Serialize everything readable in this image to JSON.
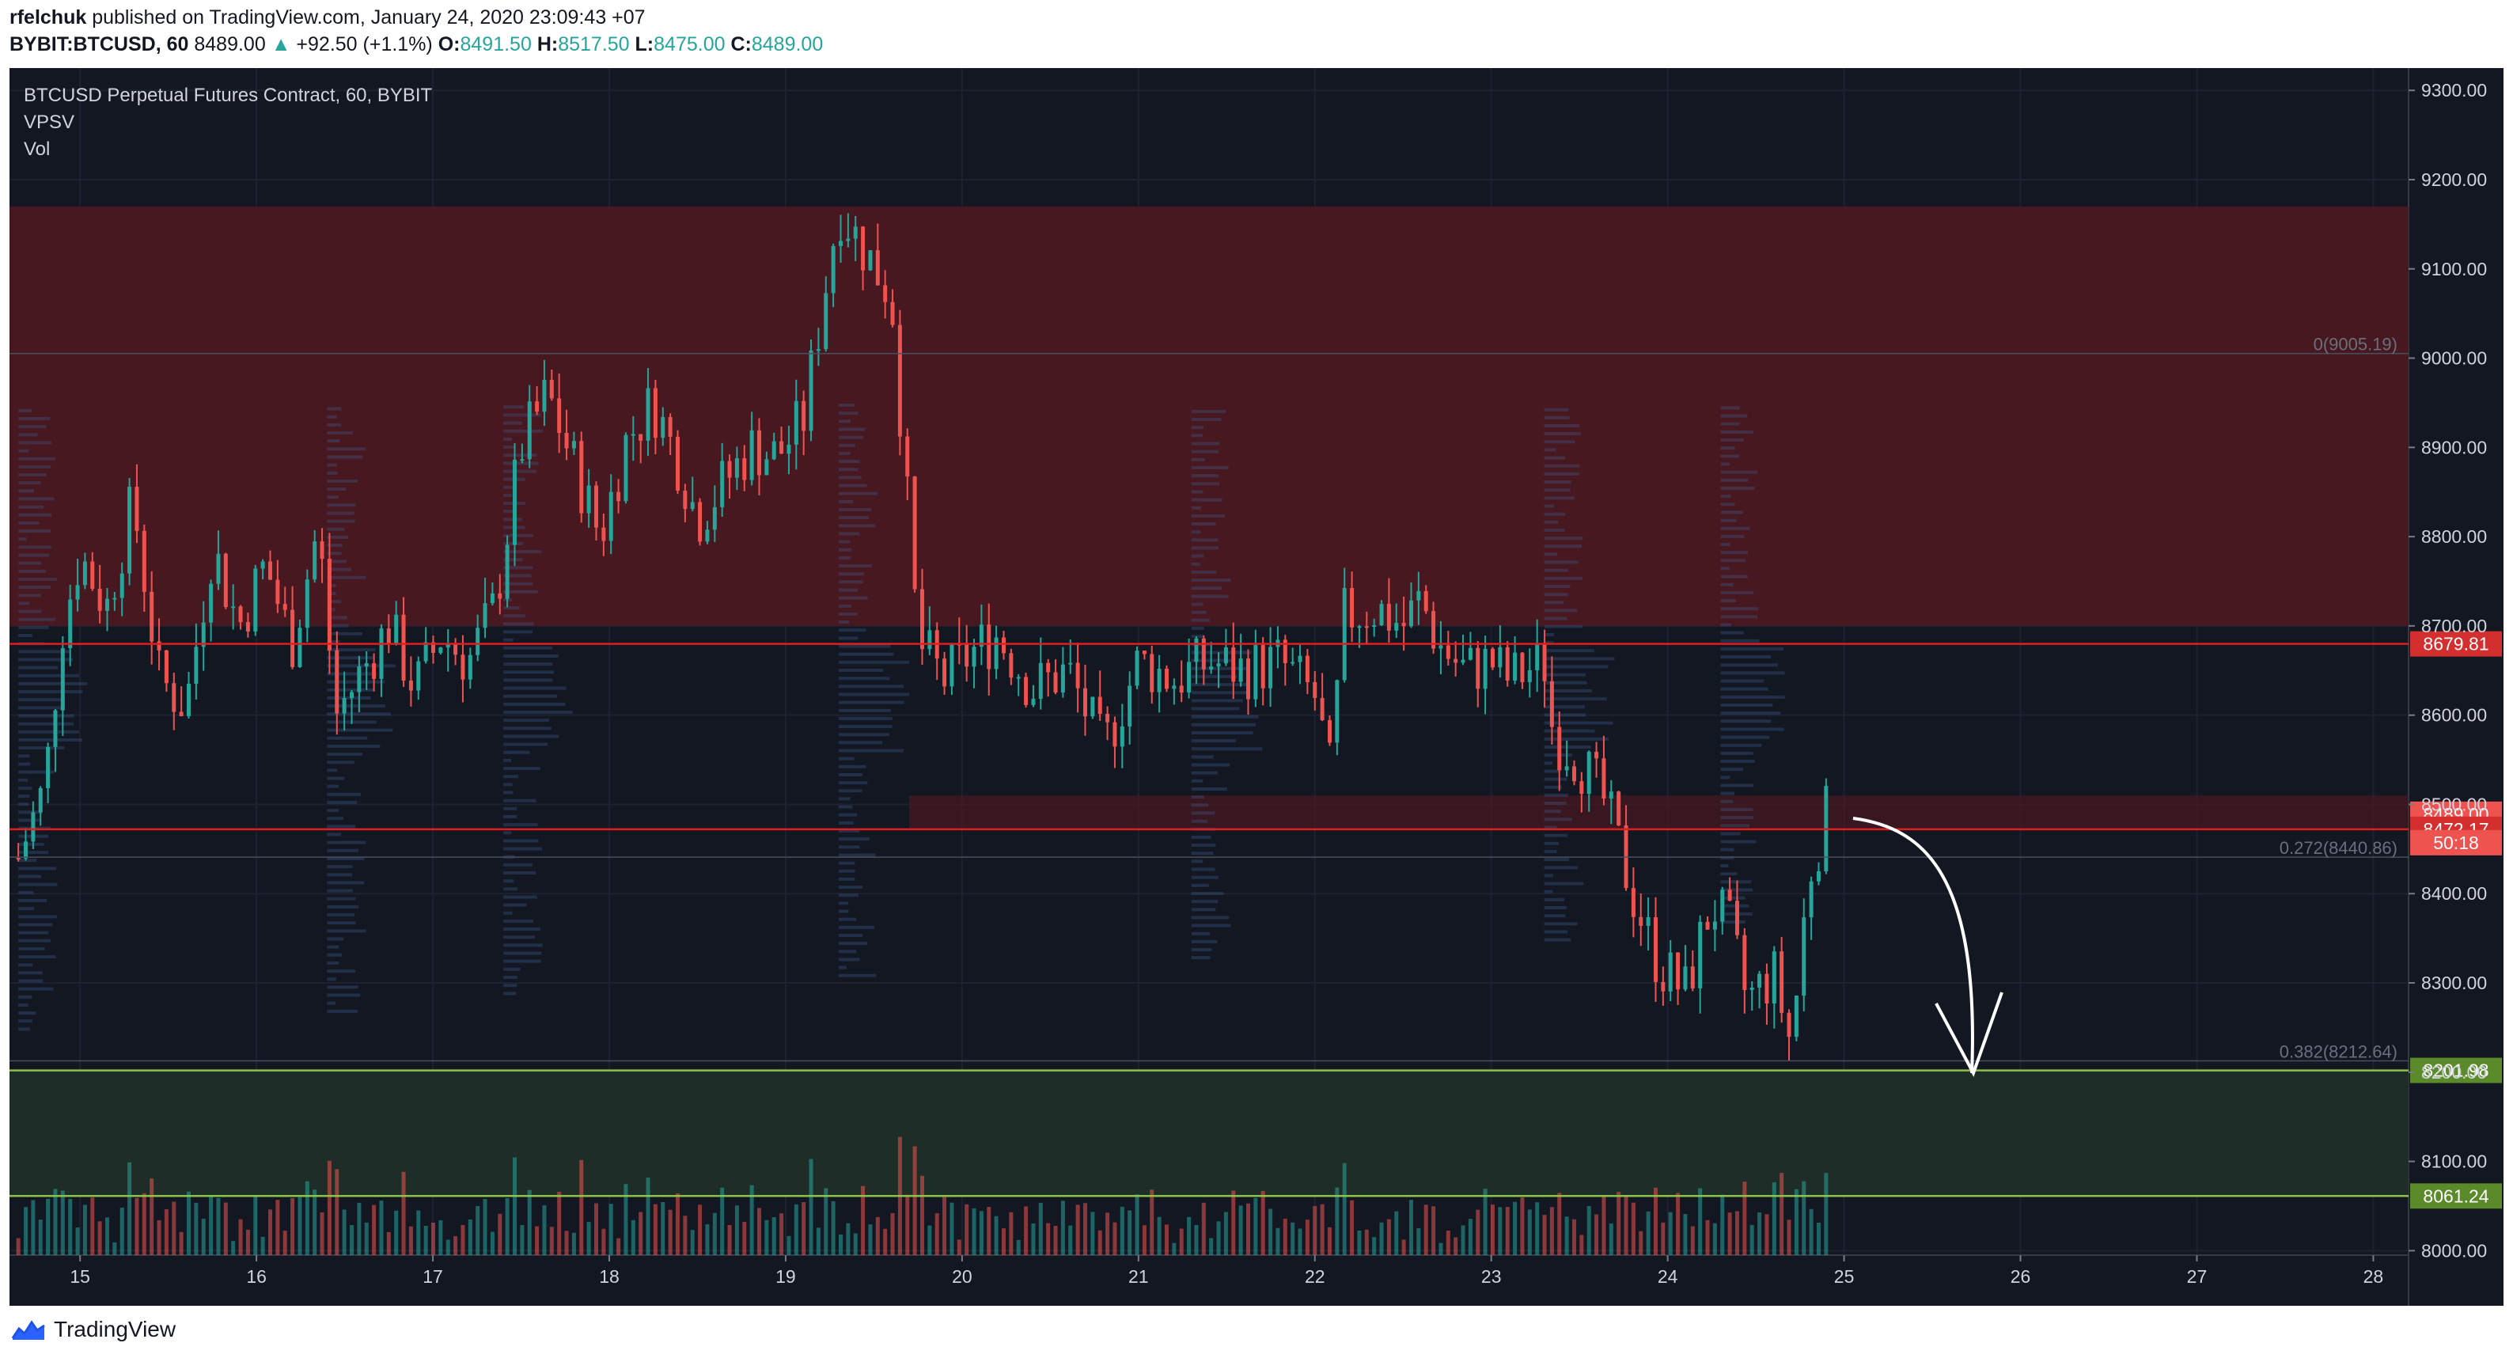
{
  "header": {
    "author": "rfelchuk",
    "published_text": "published on TradingView.com, January 24, 2020 23:09:43 +07"
  },
  "quote": {
    "symbol": "BYBIT:BTCUSD, 60",
    "last": "8489.00",
    "change": "+92.50 (+1.1%)",
    "o_label": "O:",
    "o": "8491.50",
    "h_label": "H:",
    "h": "8517.50",
    "l_label": "L:",
    "l": "8475.00",
    "c_label": "C:",
    "c": "8489.00",
    "up_color": "#26a69a"
  },
  "legend": {
    "title": "BTCUSD Perpetual Futures Contract, 60, BYBIT",
    "indicator1": "VPSV",
    "indicator2": "Vol"
  },
  "brand": {
    "name": "TradingView",
    "icon": "tradingview-logo-icon"
  },
  "colors": {
    "background": "#131722",
    "up": "#26a69a",
    "down": "#ef5350",
    "resistance_zone": "#4a1820",
    "support_zone": "#1f2e28",
    "red_line": "#e01e1e",
    "green_line": "#8bc34a"
  },
  "chart_data": {
    "type": "candlestick",
    "title": "BTCUSD Perpetual Futures Contract, 60, BYBIT",
    "interval": "60",
    "exchange": "BYBIT",
    "x_ticks": [
      "15",
      "16",
      "17",
      "18",
      "19",
      "20",
      "21",
      "22",
      "23",
      "24",
      "25",
      "26",
      "27",
      "28"
    ],
    "x_range_days": [
      14.6,
      28.2
    ],
    "y_ticks": [
      "9300.00",
      "9200.00",
      "9100.00",
      "9000.00",
      "8900.00",
      "8800.00",
      "8700.00",
      "8600.00",
      "8500.00",
      "8400.00",
      "8300.00",
      "8200.00",
      "8100.00",
      "8000.00"
    ],
    "ylim": [
      7995,
      9325
    ],
    "grid": true,
    "close_series": [
      {
        "day": 14.65,
        "close": 8440
      },
      {
        "day": 14.8,
        "close": 8520
      },
      {
        "day": 14.9,
        "close": 8700
      },
      {
        "day": 15.0,
        "close": 8780
      },
      {
        "day": 15.15,
        "close": 8720
      },
      {
        "day": 15.3,
        "close": 8840
      },
      {
        "day": 15.45,
        "close": 8640
      },
      {
        "day": 15.6,
        "close": 8610
      },
      {
        "day": 15.75,
        "close": 8790
      },
      {
        "day": 15.9,
        "close": 8700
      },
      {
        "day": 16.05,
        "close": 8770
      },
      {
        "day": 16.2,
        "close": 8680
      },
      {
        "day": 16.35,
        "close": 8810
      },
      {
        "day": 16.45,
        "close": 8600
      },
      {
        "day": 16.6,
        "close": 8650
      },
      {
        "day": 16.75,
        "close": 8700
      },
      {
        "day": 16.9,
        "close": 8630
      },
      {
        "day": 17.05,
        "close": 8690
      },
      {
        "day": 17.2,
        "close": 8660
      },
      {
        "day": 17.35,
        "close": 8720
      },
      {
        "day": 17.5,
        "close": 8900
      },
      {
        "day": 17.65,
        "close": 8960
      },
      {
        "day": 17.8,
        "close": 8880
      },
      {
        "day": 17.95,
        "close": 8800
      },
      {
        "day": 18.1,
        "close": 8910
      },
      {
        "day": 18.25,
        "close": 8950
      },
      {
        "day": 18.4,
        "close": 8880
      },
      {
        "day": 18.5,
        "close": 8820
      },
      {
        "day": 18.65,
        "close": 8860
      },
      {
        "day": 18.8,
        "close": 8900
      },
      {
        "day": 18.95,
        "close": 8890
      },
      {
        "day": 19.1,
        "close": 8930
      },
      {
        "day": 19.3,
        "close": 9170
      },
      {
        "day": 19.45,
        "close": 9120
      },
      {
        "day": 19.6,
        "close": 9070
      },
      {
        "day": 19.75,
        "close": 8680
      },
      {
        "day": 19.9,
        "close": 8640
      },
      {
        "day": 20.05,
        "close": 8670
      },
      {
        "day": 20.2,
        "close": 8690
      },
      {
        "day": 20.4,
        "close": 8630
      },
      {
        "day": 20.6,
        "close": 8650
      },
      {
        "day": 20.8,
        "close": 8560
      },
      {
        "day": 21.0,
        "close": 8660
      },
      {
        "day": 21.2,
        "close": 8640
      },
      {
        "day": 21.4,
        "close": 8660
      },
      {
        "day": 21.6,
        "close": 8650
      },
      {
        "day": 21.8,
        "close": 8660
      },
      {
        "day": 22.0,
        "close": 8620
      },
      {
        "day": 22.1,
        "close": 8520
      },
      {
        "day": 22.15,
        "close": 8710
      },
      {
        "day": 22.35,
        "close": 8720
      },
      {
        "day": 22.5,
        "close": 8700
      },
      {
        "day": 22.6,
        "close": 8730
      },
      {
        "day": 22.7,
        "close": 8680
      },
      {
        "day": 22.85,
        "close": 8650
      },
      {
        "day": 23.0,
        "close": 8660
      },
      {
        "day": 23.1,
        "close": 8640
      },
      {
        "day": 23.3,
        "close": 8660
      },
      {
        "day": 23.35,
        "close": 8580
      },
      {
        "day": 23.5,
        "close": 8550
      },
      {
        "day": 23.65,
        "close": 8500
      },
      {
        "day": 23.8,
        "close": 8400
      },
      {
        "day": 23.95,
        "close": 8320
      },
      {
        "day": 24.1,
        "close": 8290
      },
      {
        "day": 24.25,
        "close": 8390
      },
      {
        "day": 24.35,
        "close": 8360
      },
      {
        "day": 24.45,
        "close": 8280
      },
      {
        "day": 24.6,
        "close": 8310
      },
      {
        "day": 24.7,
        "close": 8230
      },
      {
        "day": 24.8,
        "close": 8420
      },
      {
        "day": 24.9,
        "close": 8489
      }
    ],
    "price_levels": [
      {
        "label": "8679.81",
        "value": 8679.81,
        "color": "#e01e1e"
      },
      {
        "label": "8489.00",
        "value": 8489.0,
        "color": "#ef5350",
        "type": "last_price"
      },
      {
        "label": "8472.17",
        "value": 8472.17,
        "color": "#e01e1e"
      },
      {
        "label": "8201.98",
        "value": 8201.98,
        "color": "#8bc34a"
      },
      {
        "label": "8061.24",
        "value": 8061.24,
        "color": "#8bc34a"
      }
    ],
    "countdown": "50:18",
    "fib_levels": [
      {
        "label": "0(9005.19)",
        "value": 9005.19
      },
      {
        "label": "0.272(8440.86)",
        "value": 8440.86
      },
      {
        "label": "0.382(8212.64)",
        "value": 8212.64
      }
    ],
    "zones": [
      {
        "name": "resistance",
        "from": 8700,
        "to": 9170
      },
      {
        "name": "support",
        "from": 8061.24,
        "to": 8201.98
      },
      {
        "name": "minor-resistance",
        "from": 8472.17,
        "to": 8510
      }
    ]
  }
}
